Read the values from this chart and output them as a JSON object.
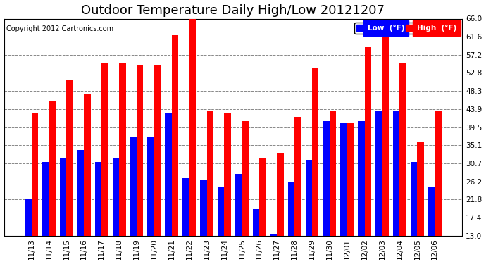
{
  "title": "Outdoor Temperature Daily High/Low 20121207",
  "copyright": "Copyright 2012 Cartronics.com",
  "legend_low": "Low  (°F)",
  "legend_high": "High  (°F)",
  "ylim": [
    13.0,
    66.0
  ],
  "ybase": 13.0,
  "yticks": [
    13.0,
    17.4,
    21.8,
    26.2,
    30.7,
    35.1,
    39.5,
    43.9,
    48.3,
    52.8,
    57.2,
    61.6,
    66.0
  ],
  "categories": [
    "11/13",
    "11/14",
    "11/15",
    "11/16",
    "11/17",
    "11/18",
    "11/19",
    "11/20",
    "11/21",
    "11/22",
    "11/23",
    "11/24",
    "11/25",
    "11/26",
    "11/27",
    "11/28",
    "11/29",
    "11/30",
    "12/01",
    "12/02",
    "12/03",
    "12/04",
    "12/05",
    "12/06"
  ],
  "lows": [
    22.0,
    31.0,
    32.0,
    34.0,
    31.0,
    32.0,
    37.0,
    37.0,
    43.0,
    27.0,
    26.5,
    25.0,
    28.0,
    19.5,
    13.5,
    26.0,
    31.5,
    41.0,
    40.5,
    41.0,
    43.5,
    43.5,
    31.0,
    25.0
  ],
  "highs": [
    43.0,
    46.0,
    51.0,
    47.5,
    55.0,
    55.0,
    54.5,
    54.5,
    62.0,
    66.0,
    43.5,
    43.0,
    41.0,
    32.0,
    33.0,
    42.0,
    54.0,
    43.5,
    40.5,
    59.0,
    62.5,
    55.0,
    36.0,
    43.5
  ],
  "bar_width": 0.38,
  "low_color": "#0000ff",
  "high_color": "#ff0000",
  "bg_color": "#ffffff",
  "grid_color": "#888888",
  "title_fontsize": 13,
  "tick_fontsize": 7.5,
  "copyright_fontsize": 7
}
